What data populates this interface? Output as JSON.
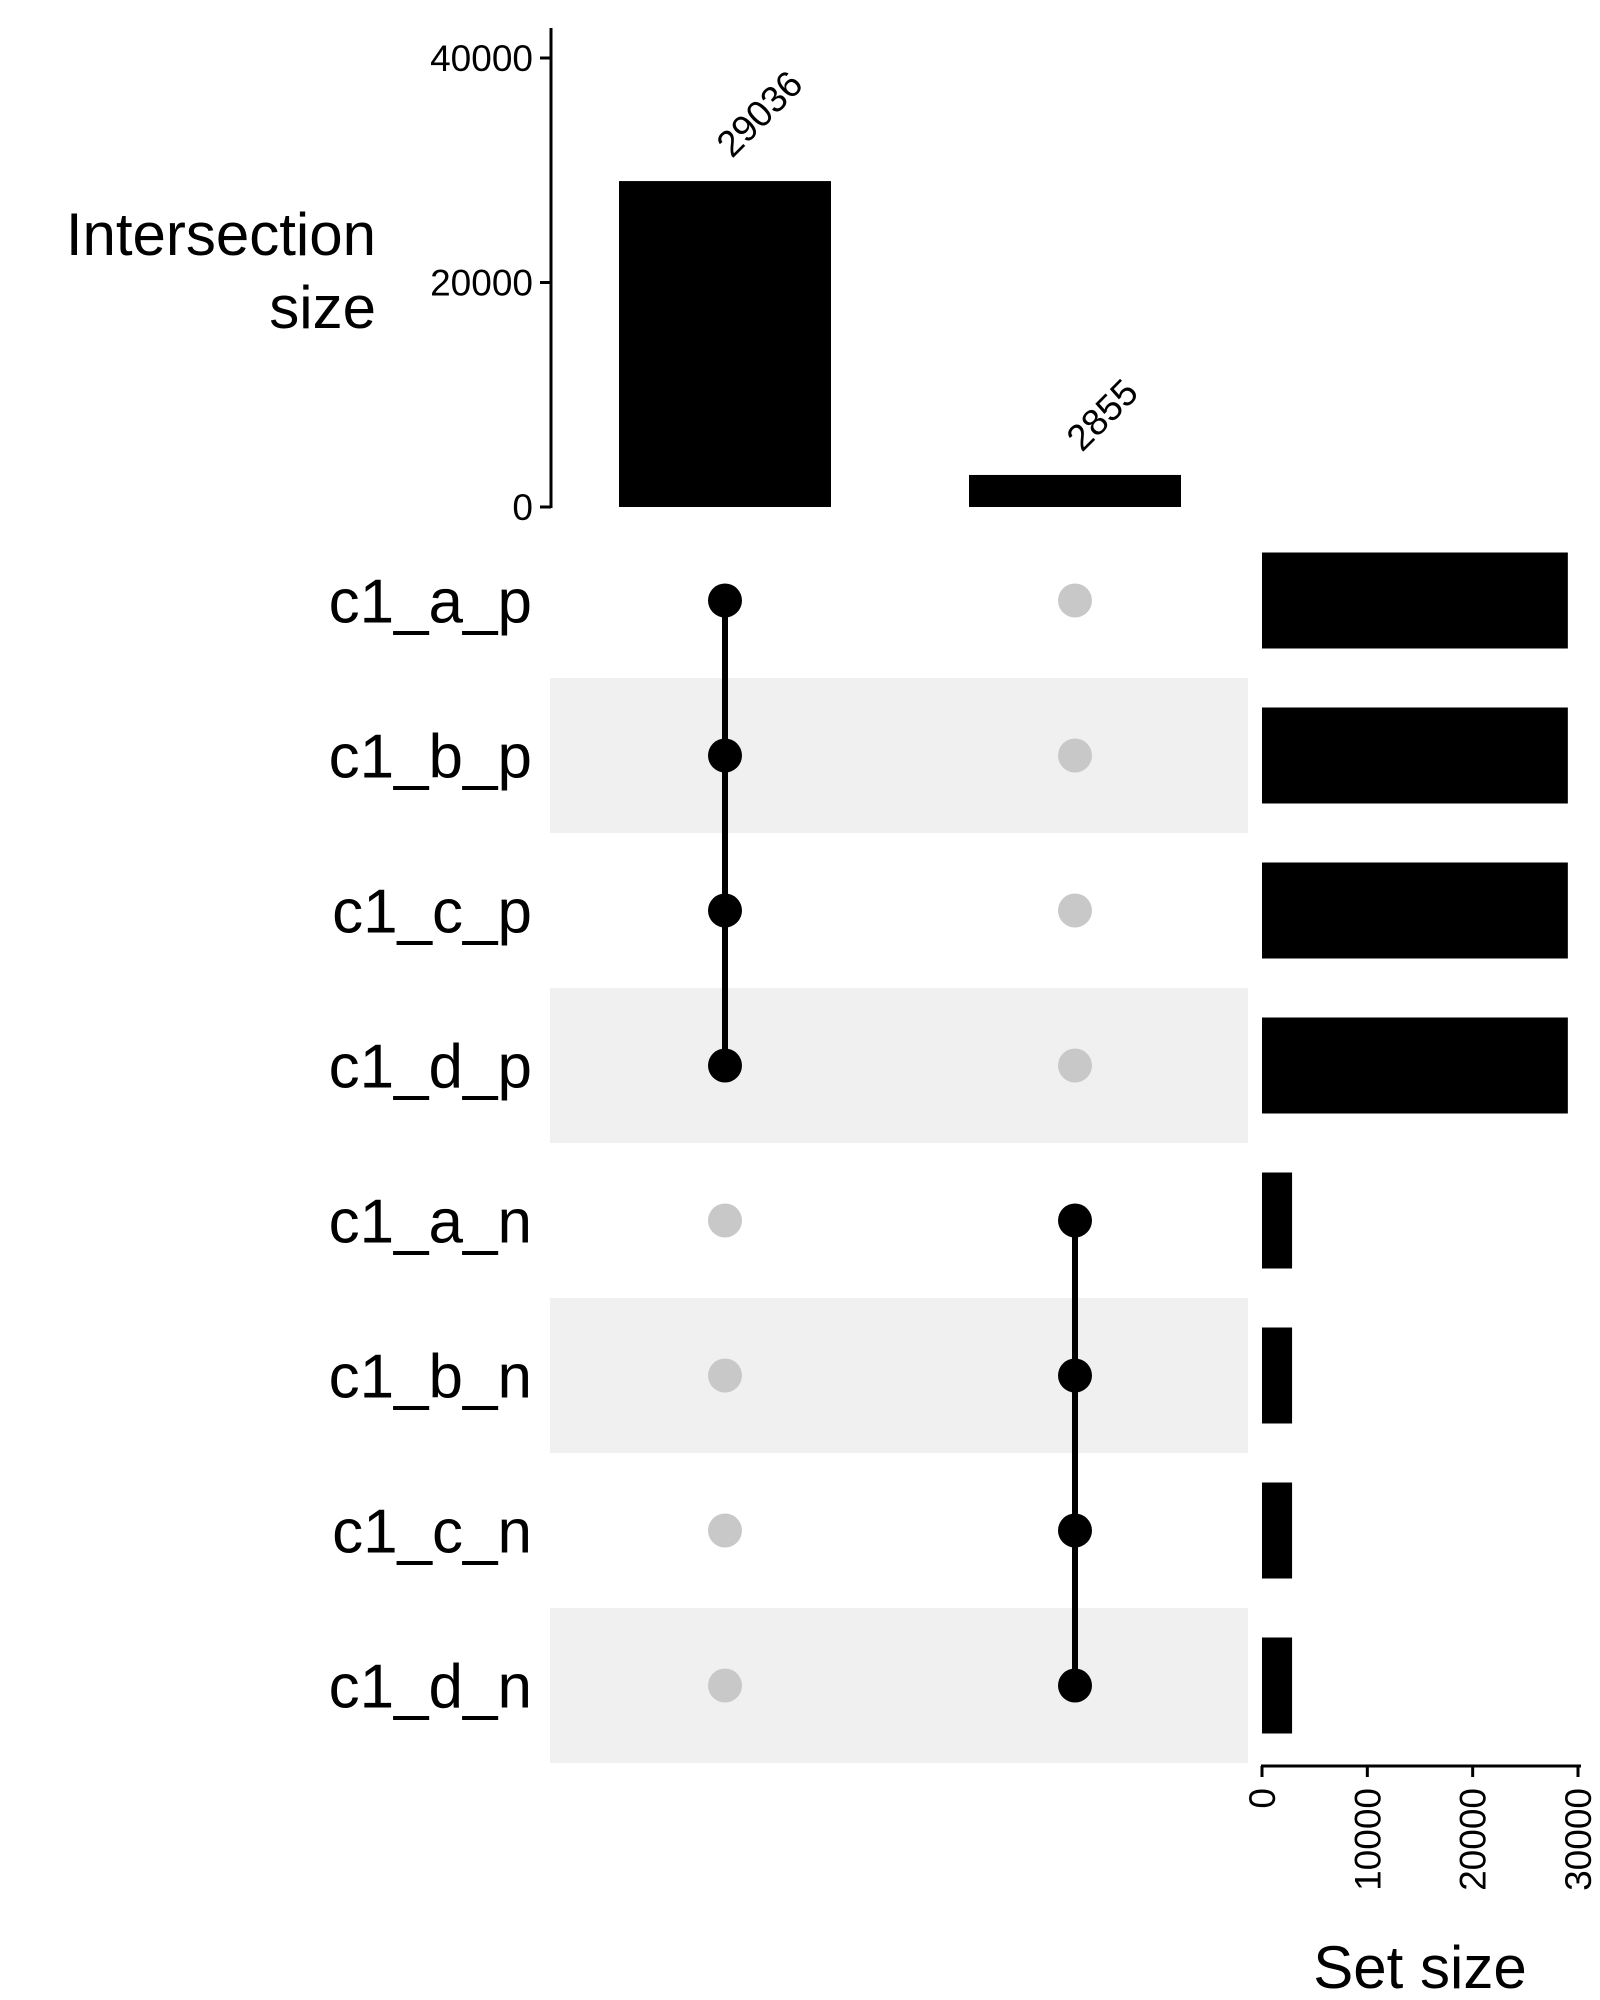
{
  "chart_data": {
    "type": "bar",
    "subtype": "upset",
    "intersection_axis": {
      "ylabel_lines": [
        "Intersection",
        "size"
      ],
      "ylim": [
        0,
        40000
      ],
      "ticks": [
        0,
        20000,
        40000
      ],
      "tick_labels": [
        "0",
        "20000",
        "40000"
      ]
    },
    "intersections": [
      {
        "value": 29036,
        "label": "29036",
        "members": [
          "c1_a_p",
          "c1_b_p",
          "c1_c_p",
          "c1_d_p"
        ]
      },
      {
        "value": 2855,
        "label": "2855",
        "members": [
          "c1_a_n",
          "c1_b_n",
          "c1_c_n",
          "c1_d_n"
        ]
      }
    ],
    "sets": [
      {
        "name": "c1_a_p",
        "size": 29036
      },
      {
        "name": "c1_b_p",
        "size": 29036
      },
      {
        "name": "c1_c_p",
        "size": 29036
      },
      {
        "name": "c1_d_p",
        "size": 29036
      },
      {
        "name": "c1_a_n",
        "size": 2855
      },
      {
        "name": "c1_b_n",
        "size": 2855
      },
      {
        "name": "c1_c_n",
        "size": 2855
      },
      {
        "name": "c1_d_n",
        "size": 2855
      }
    ],
    "set_size_axis": {
      "xlabel": "Set size",
      "xlim": [
        0,
        30000
      ],
      "ticks": [
        0,
        10000,
        20000,
        30000
      ],
      "tick_labels": [
        "0",
        "10000",
        "20000",
        "30000"
      ]
    },
    "colors": {
      "bar": "#000000",
      "dot_active": "#000000",
      "dot_inactive": "#c8c8c8",
      "stripe": "#f0f0f0"
    }
  }
}
